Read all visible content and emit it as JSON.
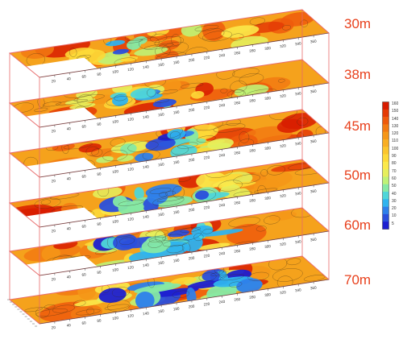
{
  "depth_labels": [
    "30m",
    "38m",
    "45m",
    "50m",
    "60m",
    "70m"
  ],
  "x_axis_ticks": [
    "20",
    "40",
    "60",
    "80",
    "100",
    "120",
    "140",
    "160",
    "180",
    "200",
    "220",
    "240",
    "260",
    "280",
    "300",
    "320",
    "340",
    "360"
  ],
  "colorbar": {
    "ticks": [
      "160",
      "150",
      "140",
      "130",
      "120",
      "110",
      "100",
      "90",
      "80",
      "70",
      "60",
      "50",
      "40",
      "30",
      "20",
      "10",
      "5"
    ],
    "colors": [
      "#d81c00",
      "#e43a05",
      "#ee5a0c",
      "#f27a12",
      "#f59618",
      "#f8ae22",
      "#fbc52c",
      "#fdd937",
      "#fbe94a",
      "#e6ef5c",
      "#bff276",
      "#86e9a4",
      "#4fd6d8",
      "#2fb3ee",
      "#2e7fea",
      "#2a4fdc",
      "#1d1fd0"
    ]
  },
  "colors": {
    "frame": "#e86a6a",
    "contour": "#3a2a18"
  }
}
